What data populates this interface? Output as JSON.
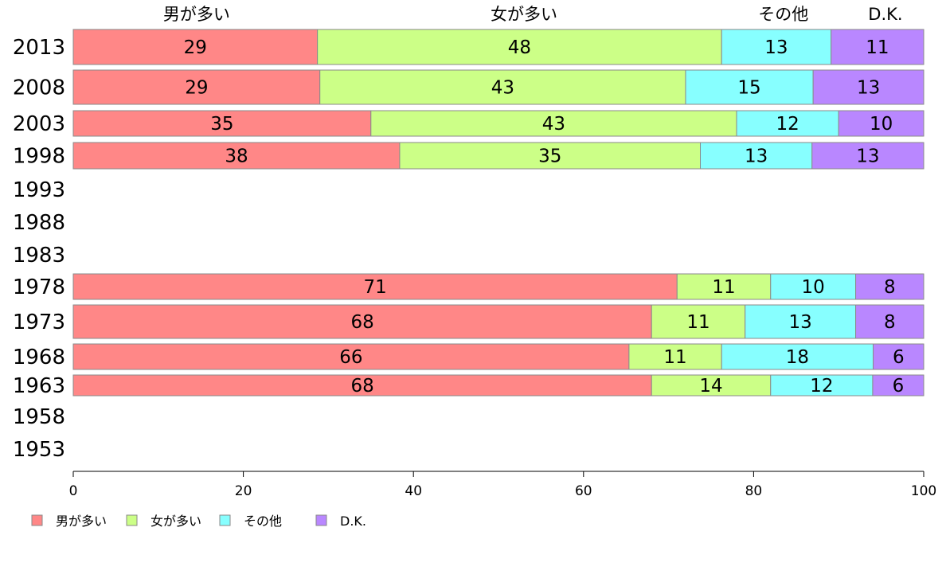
{
  "chart_data": {
    "type": "bar",
    "orientation": "horizontal",
    "stacked": true,
    "categories": [
      "2013",
      "2008",
      "2003",
      "1998",
      "1993",
      "1988",
      "1983",
      "1978",
      "1973",
      "1968",
      "1963",
      "1958",
      "1953"
    ],
    "series": [
      {
        "name": "男が多い",
        "color": "#ff8787",
        "values": [
          29,
          29,
          35,
          38,
          null,
          null,
          null,
          71,
          68,
          66,
          68,
          null,
          null
        ]
      },
      {
        "name": "女が多い",
        "color": "#ccff87",
        "values": [
          48,
          43,
          43,
          35,
          null,
          null,
          null,
          11,
          11,
          11,
          14,
          null,
          null
        ]
      },
      {
        "name": "その他",
        "color": "#87ffff",
        "values": [
          13,
          15,
          12,
          13,
          null,
          null,
          null,
          10,
          13,
          18,
          12,
          null,
          null
        ]
      },
      {
        "name": "D.K.",
        "color": "#b987ff",
        "values": [
          11,
          13,
          10,
          13,
          null,
          null,
          null,
          8,
          8,
          6,
          6,
          null,
          null
        ]
      }
    ],
    "bar_totals": [
      101,
      100,
      100,
      99,
      null,
      null,
      null,
      100,
      100,
      101,
      100,
      null,
      null
    ],
    "xlim": [
      0,
      100
    ],
    "xticks": [
      0,
      20,
      40,
      60,
      80,
      100
    ],
    "column_headers": [
      "男が多い",
      "女が多い",
      "その他",
      "D.K."
    ],
    "legend": {
      "position": "bottom-left",
      "entries": [
        "男が多い",
        "女が多い",
        "その他",
        "D.K."
      ]
    },
    "grid": false
  }
}
